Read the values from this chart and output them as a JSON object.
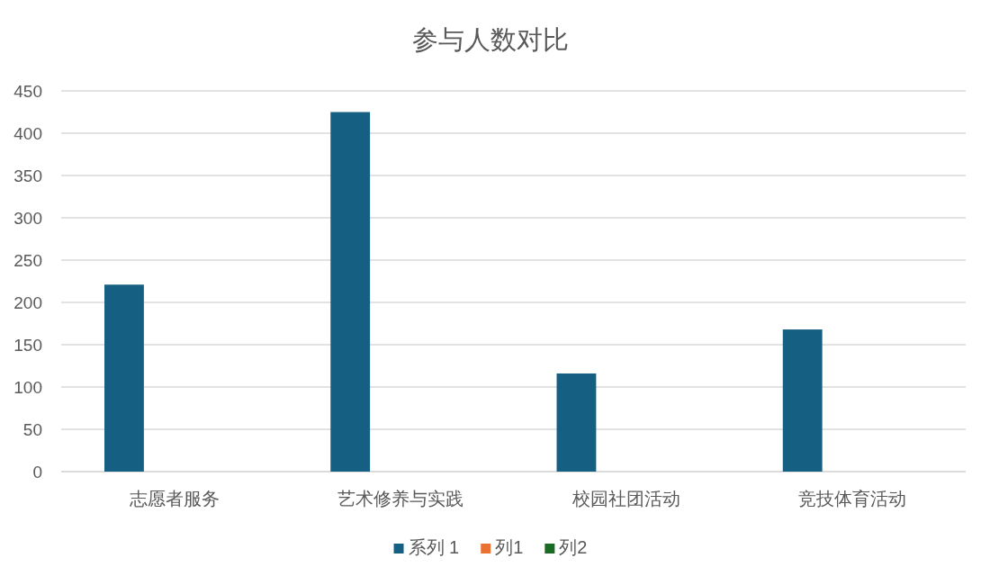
{
  "chart_data": {
    "type": "bar",
    "title": "参与人数对比",
    "categories": [
      "志愿者服务",
      "艺术修养与实践",
      "校园社团活动",
      "竞技体育活动"
    ],
    "series": [
      {
        "name": "系列 1",
        "color": "#156082",
        "values": [
          221,
          425,
          116,
          168
        ]
      },
      {
        "name": "列1",
        "color": "#e97132",
        "values": [
          null,
          null,
          null,
          null
        ]
      },
      {
        "name": "列2",
        "color": "#196b24",
        "values": [
          null,
          null,
          null,
          null
        ]
      }
    ],
    "ylim": [
      0,
      450
    ],
    "yticks": [
      0,
      50,
      100,
      150,
      200,
      250,
      300,
      350,
      400,
      450
    ],
    "grid": "y",
    "legend": "bottom"
  }
}
